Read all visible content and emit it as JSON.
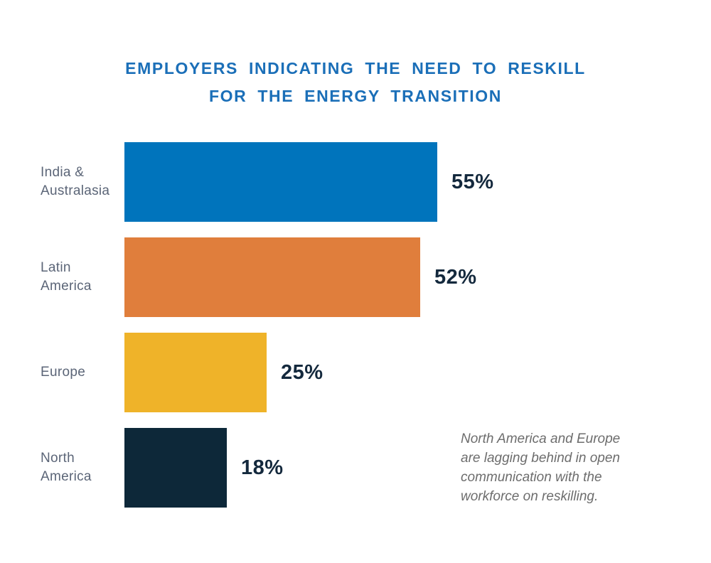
{
  "title": {
    "line1": "EMPLOYERS INDICATING THE NEED TO RESKILL",
    "line2": "FOR THE ENERGY TRANSITION"
  },
  "colors": {
    "title_blue": "#1B6FB8",
    "label_gray": "#5B6577",
    "value_navy": "#14293D",
    "annotation_gray": "#6D6D6D",
    "bar_blue": "#0074BC",
    "bar_orange": "#E07E3C",
    "bar_yellow": "#EFB329",
    "bar_navy": "#0D2839"
  },
  "chart_data": {
    "type": "bar",
    "orientation": "horizontal",
    "title": "EMPLOYERS INDICATING THE NEED TO RESKILL FOR THE ENERGY TRANSITION",
    "categories": [
      "India & Australasia",
      "Latin America",
      "Europe",
      "North America"
    ],
    "values": [
      55,
      52,
      25,
      18
    ],
    "unit": "%",
    "xlim": [
      0,
      100
    ],
    "grid": false,
    "legend": false,
    "value_label_position": "right-of-bar",
    "bars": [
      {
        "category": "India & Australasia",
        "label_lines": [
          "India &",
          "Australasia"
        ],
        "value": 55,
        "label": "55%",
        "color": "#0074BC"
      },
      {
        "category": "Latin America",
        "label_lines": [
          "Latin",
          "America"
        ],
        "value": 52,
        "label": "52%",
        "color": "#E07E3C"
      },
      {
        "category": "Europe",
        "label_lines": [
          "Europe"
        ],
        "value": 25,
        "label": "25%",
        "color": "#EFB329"
      },
      {
        "category": "North America",
        "label_lines": [
          "North",
          "America"
        ],
        "value": 18,
        "label": "18%",
        "color": "#0D2839"
      }
    ]
  },
  "annotation": {
    "text": "North America and Europe are lagging behind in open communication with the workforce on reskilling.",
    "lines": [
      "North America and Europe",
      "are lagging behind in open",
      "communication with the",
      "workforce on reskilling."
    ]
  }
}
